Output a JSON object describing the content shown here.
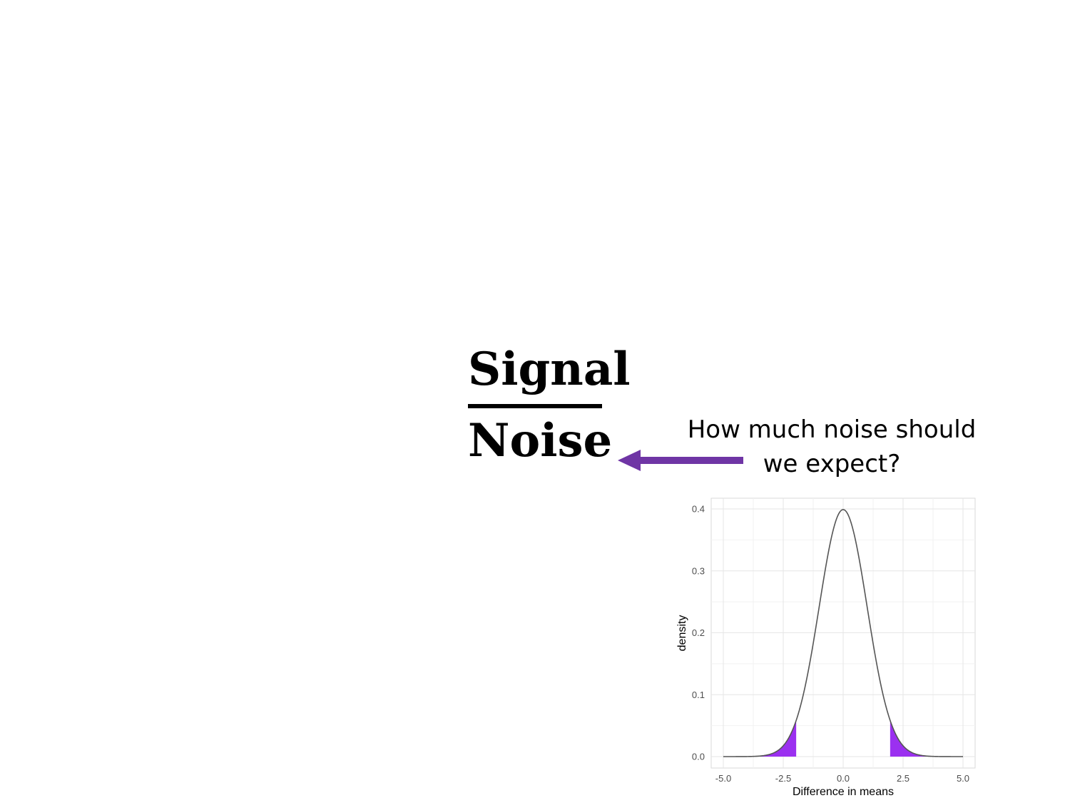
{
  "slide": {
    "numerator": "Signal",
    "denominator": "Noise",
    "question": "How much noise should we expect?",
    "arrow_color": "#6f35a5"
  },
  "chart_data": {
    "type": "area",
    "title": "",
    "xlabel": "Difference in means",
    "ylabel": "density",
    "xlim": [
      -5.0,
      5.0
    ],
    "ylim": [
      0.0,
      0.4
    ],
    "x_ticks": [
      -5.0,
      -2.5,
      0.0,
      2.5,
      5.0
    ],
    "x_tick_labels": [
      "-5.0",
      "-2.5",
      "0.0",
      "2.5",
      "5.0"
    ],
    "y_ticks": [
      0.0,
      0.1,
      0.2,
      0.3,
      0.4
    ],
    "y_tick_labels": [
      "0.0",
      "0.1",
      "0.2",
      "0.3",
      "0.4"
    ],
    "grid": true,
    "curve": {
      "distribution": "standard normal",
      "mean": 0,
      "sd": 1,
      "color": "#555555"
    },
    "shaded_tails": [
      {
        "from": -5.0,
        "to": -1.96,
        "color": "#9b30f0"
      },
      {
        "from": 1.96,
        "to": 5.0,
        "color": "#9b30f0"
      }
    ]
  }
}
